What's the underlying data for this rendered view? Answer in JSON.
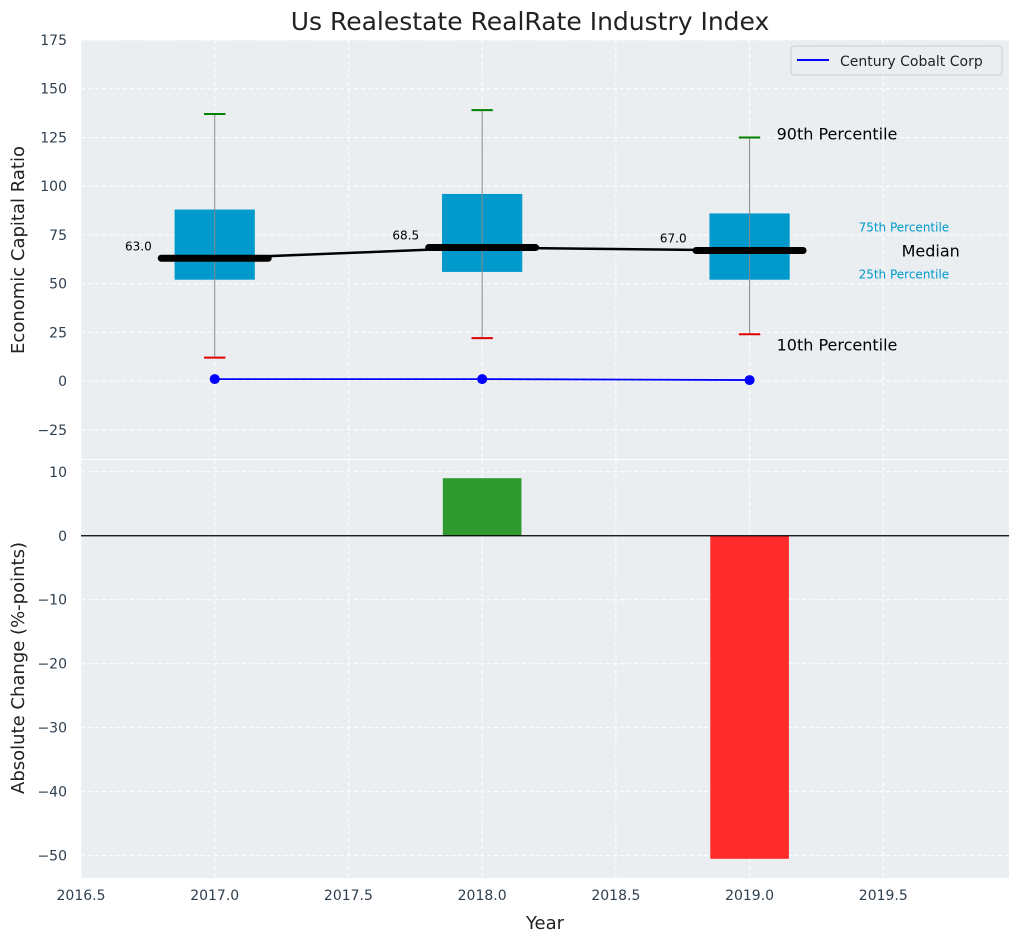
{
  "colors": {
    "panel_bg": "#eaeef0",
    "box": "#0099cc",
    "median": "#000000",
    "whisker": "#888888",
    "p90": "#008000",
    "p10": "#e00000",
    "company": "#0000ff",
    "increase": "#2f9a2f",
    "decrease": "#ff2a2a"
  },
  "chart_data": [
    {
      "type": "box",
      "title": "Us Realestate RealRate Industry Index",
      "xlabel": "",
      "ylabel": "Economic Capital Ratio",
      "ylim": [
        -40,
        175
      ],
      "yticks": [
        -25,
        0,
        25,
        50,
        75,
        100,
        125,
        150,
        175
      ],
      "ytick_labels": [
        "−25",
        "0",
        "25",
        "50",
        "75",
        "100",
        "125",
        "150",
        "175"
      ],
      "xlim": [
        2016.5,
        2019.97
      ],
      "grid": true,
      "legend": "top-right",
      "years": [
        2017,
        2018,
        2019
      ],
      "p10": [
        12,
        22,
        24
      ],
      "p25": [
        52,
        56,
        52
      ],
      "median": [
        63.0,
        68.5,
        67.0
      ],
      "median_labels": [
        "63.0",
        "68.5",
        "67.0"
      ],
      "p75": [
        88,
        96,
        86
      ],
      "p90": [
        137,
        139,
        125
      ],
      "series": [
        {
          "name": "Century Cobalt Corp",
          "x": [
            2017,
            2018,
            2019
          ],
          "y": [
            1,
            1,
            0.5
          ]
        }
      ],
      "annotations": {
        "p90": "90th Percentile",
        "p75": "75th Percentile",
        "median": "Median",
        "p25": "25th Percentile",
        "p10": "10th Percentile"
      }
    },
    {
      "type": "bar",
      "xlabel": "Year",
      "ylabel": "Absolute Change (%-points)",
      "ylim": [
        -53.5,
        12
      ],
      "yticks": [
        -50,
        -40,
        -30,
        -20,
        -10,
        0,
        10
      ],
      "ytick_labels": [
        "−50",
        "−40",
        "−30",
        "−20",
        "−10",
        "0",
        "10"
      ],
      "xlim": [
        2016.5,
        2019.97
      ],
      "xticks": [
        2016.5,
        2017.0,
        2017.5,
        2018.0,
        2018.5,
        2019.0,
        2019.5
      ],
      "xtick_labels": [
        "2016.5",
        "2017.0",
        "2017.5",
        "2018.0",
        "2018.5",
        "2019.0",
        "2019.5"
      ],
      "grid": true,
      "categories": [
        2018,
        2019
      ],
      "values": [
        9,
        -50.5
      ]
    }
  ]
}
